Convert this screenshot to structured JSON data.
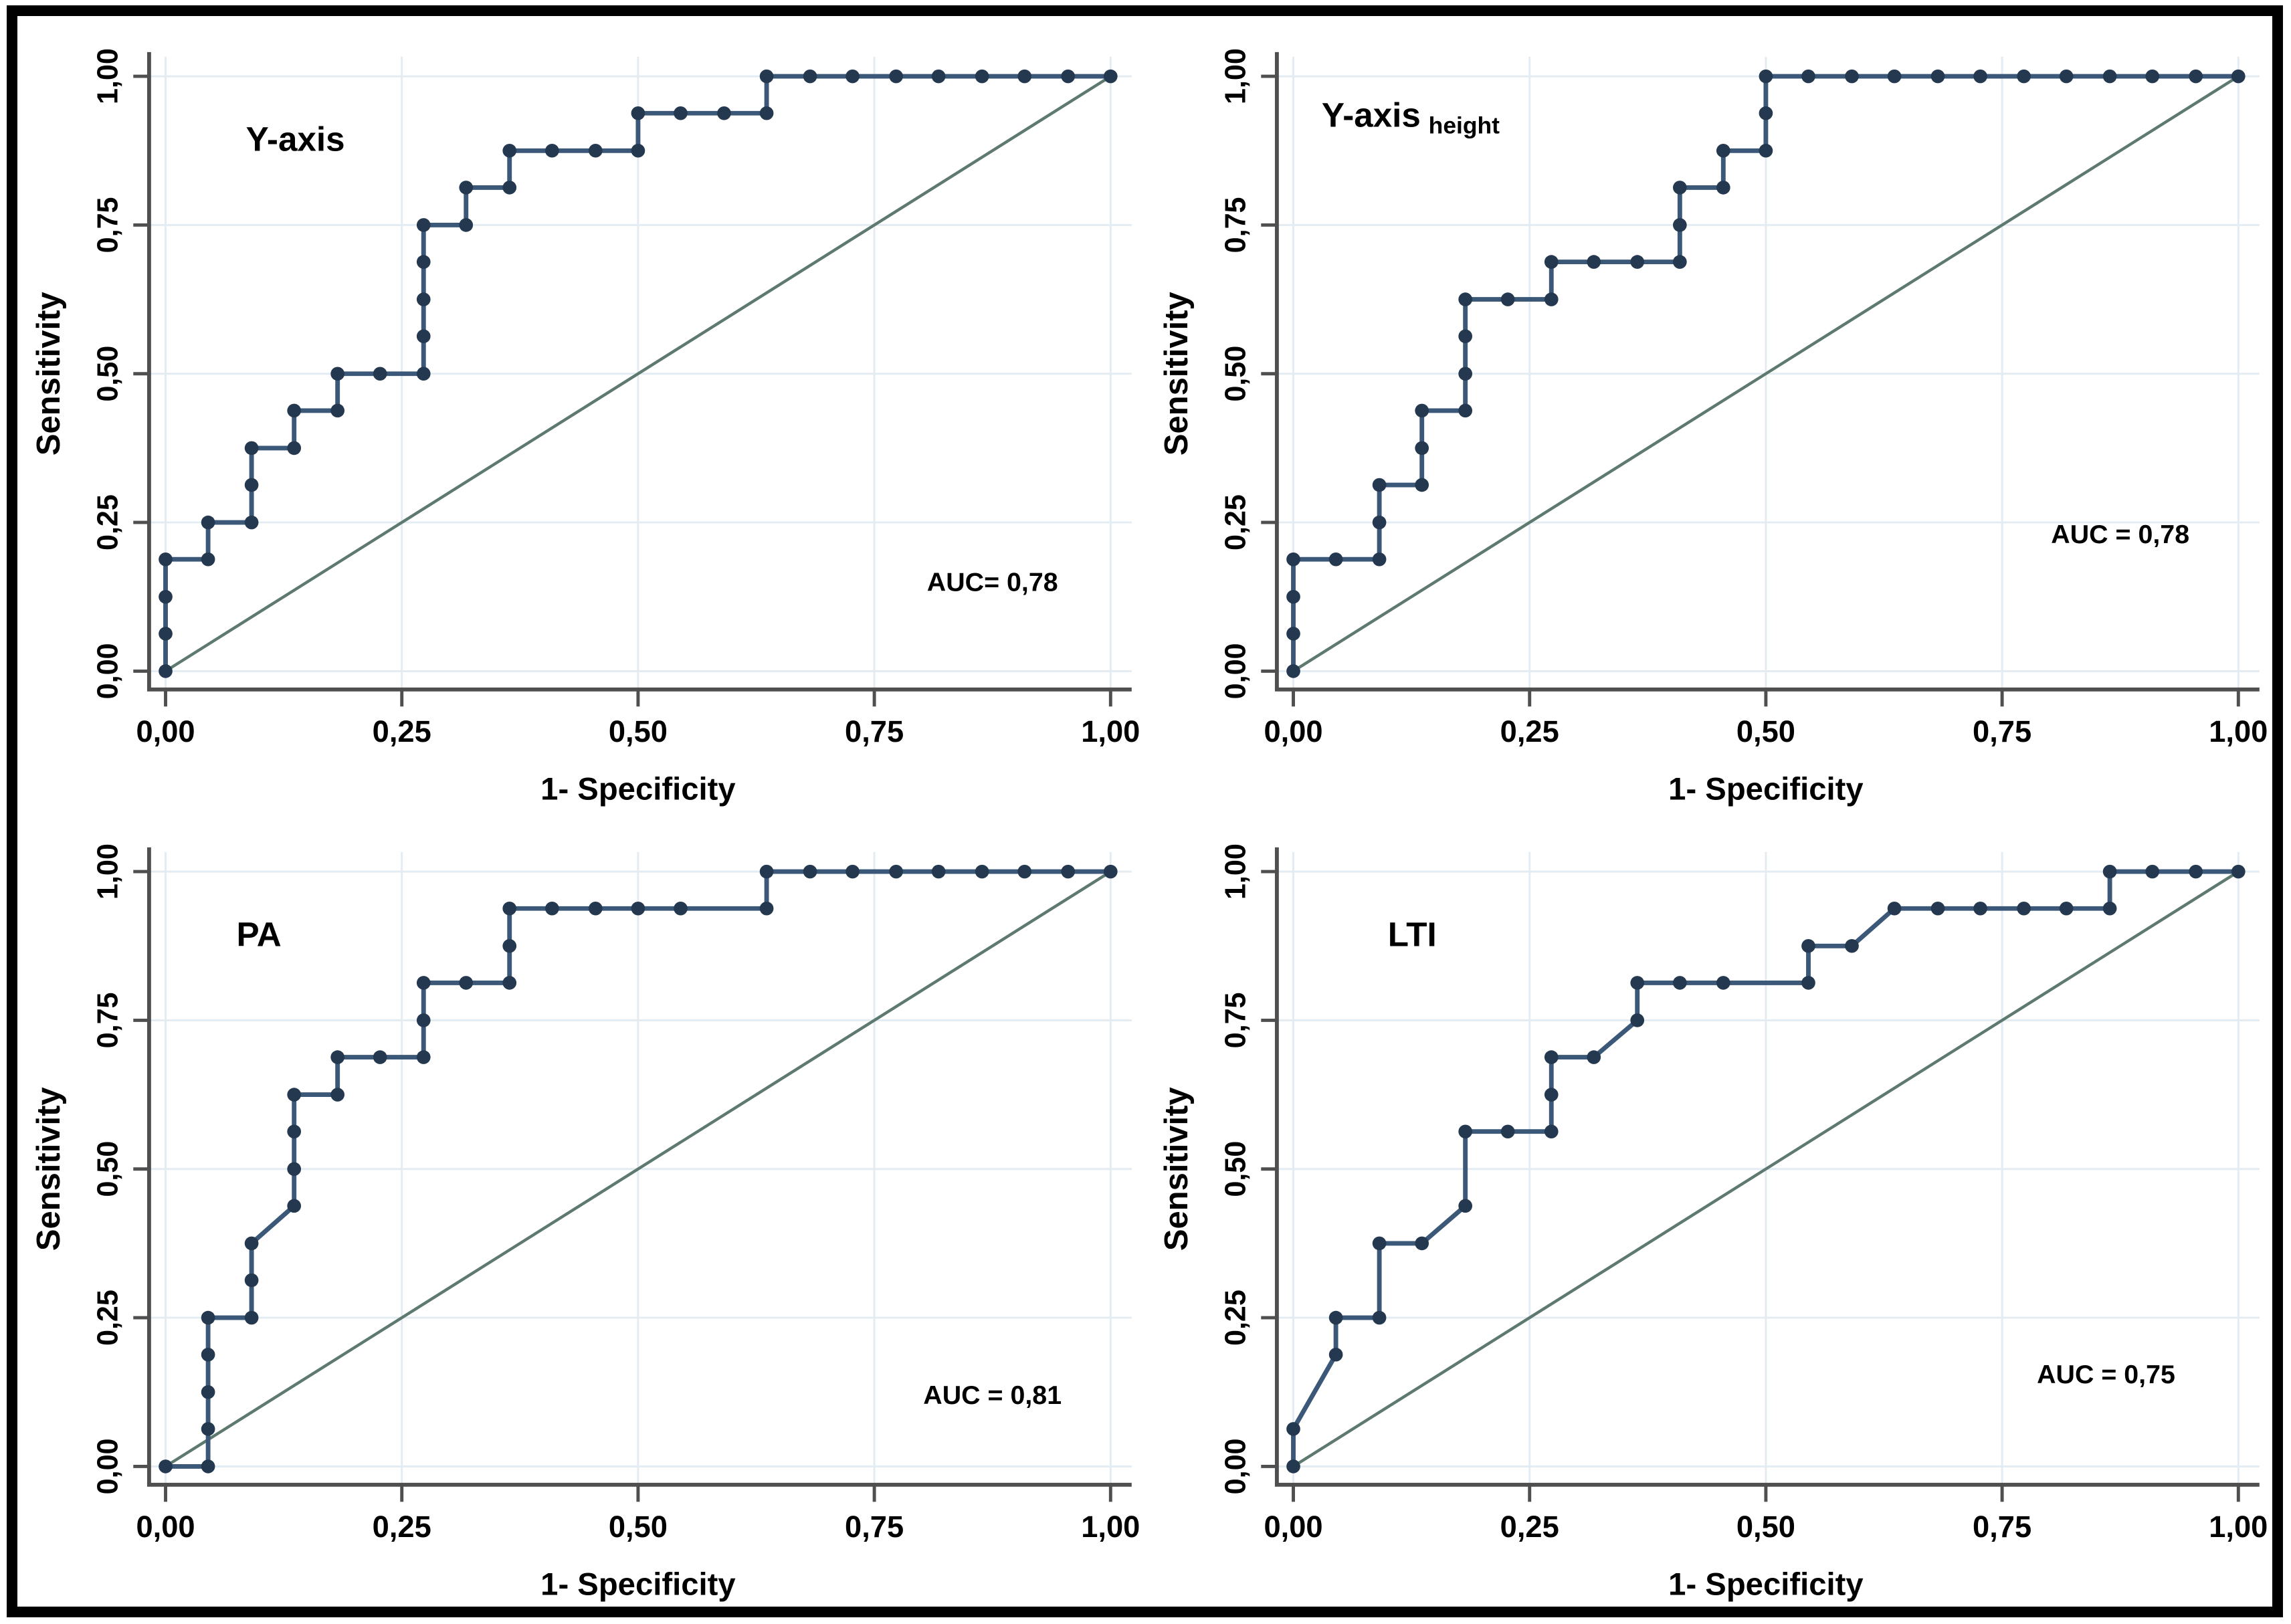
{
  "figure": {
    "border_color": "#000000",
    "background": "#ffffff"
  },
  "style": {
    "curve_color": "#3b5878",
    "dot_color": "#24384f",
    "diagonal_color": "#5e7a70",
    "grid_color": "#e3ecf2",
    "axis_color": "#4f4f4f",
    "text_color": "#000000"
  },
  "chart_data": [
    {
      "type": "line",
      "id": "y-axis",
      "panel": "top-left",
      "title": "Y-axis",
      "title_subscript": "",
      "auc_label": "AUC= 0,78",
      "auc_value": 0.78,
      "xlabel": "1- Specificity",
      "ylabel": "Sensitivity",
      "xlim": [
        0,
        1
      ],
      "ylim": [
        0,
        1
      ],
      "x_ticks": [
        "0,00",
        "0,25",
        "0,50",
        "0,75",
        "1,00"
      ],
      "y_ticks": [
        "0,00",
        "0,25",
        "0,50",
        "0,75",
        "1,00"
      ],
      "grid": true,
      "reference_diagonal": true,
      "points": [
        [
          0,
          0
        ],
        [
          0,
          0.063
        ],
        [
          0,
          0.125
        ],
        [
          0,
          0.188
        ],
        [
          0.045,
          0.188
        ],
        [
          0.045,
          0.25
        ],
        [
          0.091,
          0.25
        ],
        [
          0.091,
          0.313
        ],
        [
          0.091,
          0.375
        ],
        [
          0.136,
          0.375
        ],
        [
          0.136,
          0.438
        ],
        [
          0.182,
          0.438
        ],
        [
          0.182,
          0.5
        ],
        [
          0.227,
          0.5
        ],
        [
          0.273,
          0.5
        ],
        [
          0.273,
          0.563
        ],
        [
          0.273,
          0.625
        ],
        [
          0.273,
          0.688
        ],
        [
          0.273,
          0.75
        ],
        [
          0.318,
          0.75
        ],
        [
          0.318,
          0.813
        ],
        [
          0.364,
          0.813
        ],
        [
          0.364,
          0.875
        ],
        [
          0.409,
          0.875
        ],
        [
          0.455,
          0.875
        ],
        [
          0.5,
          0.875
        ],
        [
          0.5,
          0.938
        ],
        [
          0.545,
          0.938
        ],
        [
          0.591,
          0.938
        ],
        [
          0.636,
          0.938
        ],
        [
          0.636,
          1
        ],
        [
          0.682,
          1
        ],
        [
          0.727,
          1
        ],
        [
          0.773,
          1
        ],
        [
          0.818,
          1
        ],
        [
          0.864,
          1
        ],
        [
          0.909,
          1
        ],
        [
          0.955,
          1
        ],
        [
          1,
          1
        ]
      ],
      "layout": {
        "title_x": 0.085,
        "title_y": 0.875,
        "auc_x": 0.875,
        "auc_y": 0.135
      }
    },
    {
      "type": "line",
      "id": "y-axis-height",
      "panel": "top-right",
      "title": "Y-axis",
      "title_subscript": "height",
      "auc_label": "AUC = 0,78",
      "auc_value": 0.78,
      "xlabel": "1- Specificity",
      "ylabel": "Sensitivity",
      "xlim": [
        0,
        1
      ],
      "ylim": [
        0,
        1
      ],
      "x_ticks": [
        "0,00",
        "0,25",
        "0,50",
        "0,75",
        "1,00"
      ],
      "y_ticks": [
        "0,00",
        "0,25",
        "0,50",
        "0,75",
        "1,00"
      ],
      "grid": true,
      "reference_diagonal": true,
      "points": [
        [
          0,
          0
        ],
        [
          0,
          0.063
        ],
        [
          0,
          0.125
        ],
        [
          0,
          0.188
        ],
        [
          0.045,
          0.188
        ],
        [
          0.091,
          0.188
        ],
        [
          0.091,
          0.25
        ],
        [
          0.091,
          0.313
        ],
        [
          0.136,
          0.313
        ],
        [
          0.136,
          0.375
        ],
        [
          0.136,
          0.438
        ],
        [
          0.182,
          0.438
        ],
        [
          0.182,
          0.5
        ],
        [
          0.182,
          0.563
        ],
        [
          0.182,
          0.625
        ],
        [
          0.227,
          0.625
        ],
        [
          0.273,
          0.625
        ],
        [
          0.273,
          0.688
        ],
        [
          0.318,
          0.688
        ],
        [
          0.364,
          0.688
        ],
        [
          0.409,
          0.688
        ],
        [
          0.409,
          0.75
        ],
        [
          0.409,
          0.813
        ],
        [
          0.455,
          0.813
        ],
        [
          0.455,
          0.875
        ],
        [
          0.5,
          0.875
        ],
        [
          0.5,
          0.938
        ],
        [
          0.5,
          1
        ],
        [
          0.545,
          1
        ],
        [
          0.591,
          1
        ],
        [
          0.636,
          1
        ],
        [
          0.682,
          1
        ],
        [
          0.727,
          1
        ],
        [
          0.773,
          1
        ],
        [
          0.818,
          1
        ],
        [
          0.864,
          1
        ],
        [
          0.909,
          1
        ],
        [
          0.955,
          1
        ],
        [
          1,
          1
        ]
      ],
      "layout": {
        "title_x": 0.03,
        "title_y": 0.915,
        "auc_x": 0.875,
        "auc_y": 0.215
      }
    },
    {
      "type": "line",
      "id": "pa",
      "panel": "bottom-left",
      "title": "PA",
      "title_subscript": "",
      "auc_label": "AUC = 0,81",
      "auc_value": 0.81,
      "xlabel": "1- Specificity",
      "ylabel": "Sensitivity",
      "xlim": [
        0,
        1
      ],
      "ylim": [
        0,
        1
      ],
      "x_ticks": [
        "0,00",
        "0,25",
        "0,50",
        "0,75",
        "1,00"
      ],
      "y_ticks": [
        "0,00",
        "0,25",
        "0,50",
        "0,75",
        "1,00"
      ],
      "grid": true,
      "reference_diagonal": true,
      "points": [
        [
          0,
          0
        ],
        [
          0.045,
          0
        ],
        [
          0.045,
          0.063
        ],
        [
          0.045,
          0.125
        ],
        [
          0.045,
          0.188
        ],
        [
          0.045,
          0.25
        ],
        [
          0.091,
          0.25
        ],
        [
          0.091,
          0.313
        ],
        [
          0.091,
          0.375
        ],
        [
          0.136,
          0.438
        ],
        [
          0.136,
          0.5
        ],
        [
          0.136,
          0.563
        ],
        [
          0.136,
          0.625
        ],
        [
          0.182,
          0.625
        ],
        [
          0.182,
          0.688
        ],
        [
          0.227,
          0.688
        ],
        [
          0.273,
          0.688
        ],
        [
          0.273,
          0.75
        ],
        [
          0.273,
          0.813
        ],
        [
          0.318,
          0.813
        ],
        [
          0.364,
          0.813
        ],
        [
          0.364,
          0.875
        ],
        [
          0.364,
          0.938
        ],
        [
          0.409,
          0.938
        ],
        [
          0.455,
          0.938
        ],
        [
          0.5,
          0.938
        ],
        [
          0.545,
          0.938
        ],
        [
          0.636,
          0.938
        ],
        [
          0.636,
          1
        ],
        [
          0.682,
          1
        ],
        [
          0.727,
          1
        ],
        [
          0.773,
          1
        ],
        [
          0.818,
          1
        ],
        [
          0.864,
          1
        ],
        [
          0.909,
          1
        ],
        [
          0.955,
          1
        ],
        [
          1,
          1
        ]
      ],
      "layout": {
        "title_x": 0.075,
        "title_y": 0.875,
        "auc_x": 0.875,
        "auc_y": 0.105
      }
    },
    {
      "type": "line",
      "id": "lti",
      "panel": "bottom-right",
      "title": "LTI",
      "title_subscript": "",
      "auc_label": "AUC = 0,75",
      "auc_value": 0.75,
      "xlabel": "1- Specificity",
      "ylabel": "Sensitivity",
      "xlim": [
        0,
        1
      ],
      "ylim": [
        0,
        1
      ],
      "x_ticks": [
        "0,00",
        "0,25",
        "0,50",
        "0,75",
        "1,00"
      ],
      "y_ticks": [
        "0,00",
        "0,25",
        "0,50",
        "0,75",
        "1,00"
      ],
      "grid": true,
      "reference_diagonal": true,
      "points": [
        [
          0,
          0
        ],
        [
          0,
          0.063
        ],
        [
          0.045,
          0.188
        ],
        [
          0.045,
          0.25
        ],
        [
          0.091,
          0.25
        ],
        [
          0.091,
          0.375
        ],
        [
          0.136,
          0.375
        ],
        [
          0.182,
          0.438
        ],
        [
          0.182,
          0.563
        ],
        [
          0.227,
          0.563
        ],
        [
          0.273,
          0.563
        ],
        [
          0.273,
          0.625
        ],
        [
          0.273,
          0.688
        ],
        [
          0.318,
          0.688
        ],
        [
          0.364,
          0.75
        ],
        [
          0.364,
          0.813
        ],
        [
          0.409,
          0.813
        ],
        [
          0.455,
          0.813
        ],
        [
          0.545,
          0.813
        ],
        [
          0.545,
          0.875
        ],
        [
          0.591,
          0.875
        ],
        [
          0.636,
          0.938
        ],
        [
          0.682,
          0.938
        ],
        [
          0.727,
          0.938
        ],
        [
          0.773,
          0.938
        ],
        [
          0.818,
          0.938
        ],
        [
          0.864,
          0.938
        ],
        [
          0.864,
          1
        ],
        [
          0.909,
          1
        ],
        [
          0.955,
          1
        ],
        [
          1,
          1
        ]
      ],
      "layout": {
        "title_x": 0.1,
        "title_y": 0.875,
        "auc_x": 0.86,
        "auc_y": 0.14
      }
    }
  ]
}
